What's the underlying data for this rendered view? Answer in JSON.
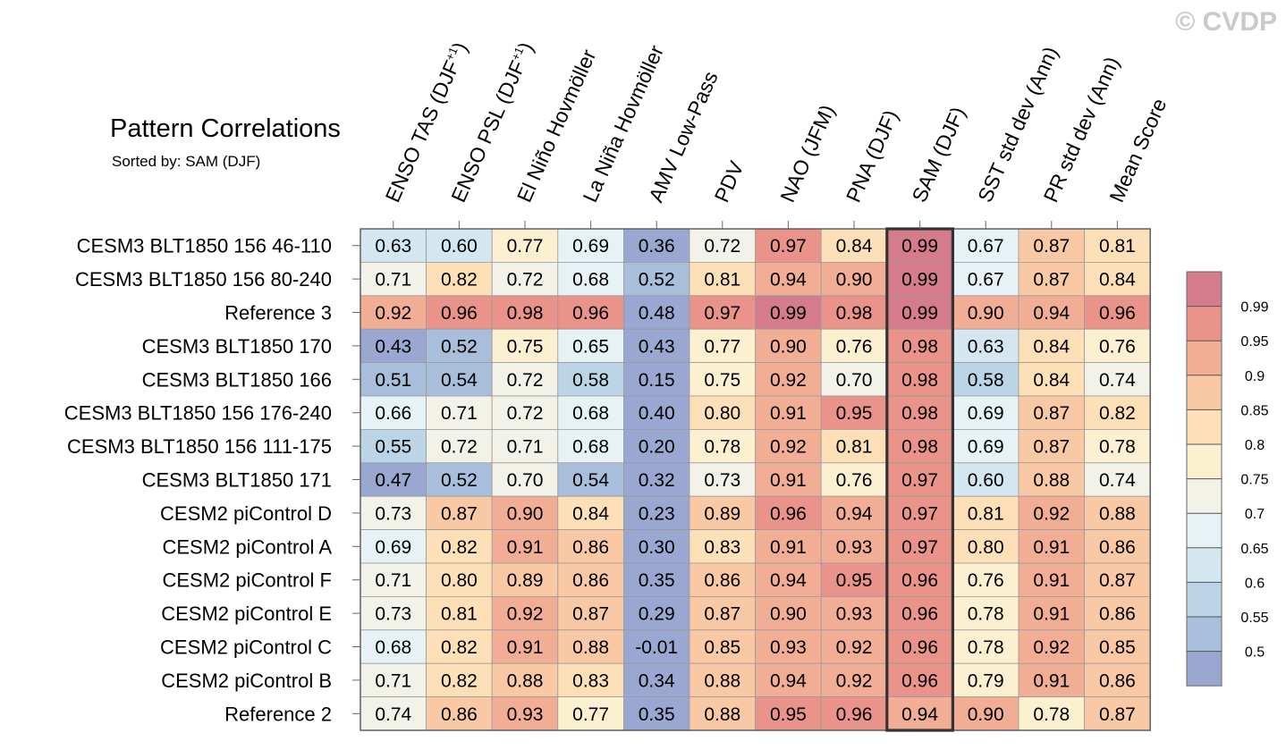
{
  "watermark": "© CVDP",
  "chart_data": {
    "type": "heatmap",
    "title": "Pattern Correlations",
    "subtitle": "Sorted by: SAM (DJF)",
    "highlight_column": "SAM (DJF)",
    "columns": [
      "ENSO TAS (DJF+1)",
      "ENSO PSL (DJF+1)",
      "El Niño Hovmöller",
      "La Niña Hovmöller",
      "AMV Low-Pass",
      "PDV",
      "NAO (JFM)",
      "PNA (DJF)",
      "SAM (DJF)",
      "SST std dev (Ann)",
      "PR std dev (Ann)",
      "Mean Score"
    ],
    "rows": [
      {
        "name": "CESM3 BLT1850 156 46-110",
        "values": [
          0.63,
          0.6,
          0.77,
          0.69,
          0.36,
          0.72,
          0.97,
          0.84,
          0.99,
          0.67,
          0.87,
          0.81
        ]
      },
      {
        "name": "CESM3 BLT1850 156 80-240",
        "values": [
          0.71,
          0.82,
          0.72,
          0.68,
          0.52,
          0.81,
          0.94,
          0.9,
          0.99,
          0.67,
          0.87,
          0.84
        ]
      },
      {
        "name": "Reference 3",
        "values": [
          0.92,
          0.96,
          0.98,
          0.96,
          0.48,
          0.97,
          0.99,
          0.98,
          0.99,
          0.9,
          0.94,
          0.96
        ]
      },
      {
        "name": "CESM3 BLT1850 170",
        "values": [
          0.43,
          0.52,
          0.75,
          0.65,
          0.43,
          0.77,
          0.9,
          0.76,
          0.98,
          0.63,
          0.84,
          0.76
        ]
      },
      {
        "name": "CESM3 BLT1850 166",
        "values": [
          0.51,
          0.54,
          0.72,
          0.58,
          0.15,
          0.75,
          0.92,
          0.7,
          0.98,
          0.58,
          0.84,
          0.74
        ]
      },
      {
        "name": "CESM3 BLT1850 156 176-240",
        "values": [
          0.66,
          0.71,
          0.72,
          0.68,
          0.4,
          0.8,
          0.91,
          0.95,
          0.98,
          0.69,
          0.87,
          0.82
        ]
      },
      {
        "name": "CESM3 BLT1850 156 111-175",
        "values": [
          0.55,
          0.72,
          0.71,
          0.68,
          0.2,
          0.78,
          0.92,
          0.81,
          0.98,
          0.69,
          0.87,
          0.78
        ]
      },
      {
        "name": "CESM3 BLT1850 171",
        "values": [
          0.47,
          0.52,
          0.7,
          0.54,
          0.32,
          0.73,
          0.91,
          0.76,
          0.97,
          0.6,
          0.88,
          0.74
        ]
      },
      {
        "name": "CESM2 piControl D",
        "values": [
          0.73,
          0.87,
          0.9,
          0.84,
          0.23,
          0.89,
          0.96,
          0.94,
          0.97,
          0.81,
          0.92,
          0.88
        ]
      },
      {
        "name": "CESM2 piControl A",
        "values": [
          0.69,
          0.82,
          0.91,
          0.86,
          0.3,
          0.83,
          0.91,
          0.93,
          0.97,
          0.8,
          0.91,
          0.86
        ]
      },
      {
        "name": "CESM2 piControl F",
        "values": [
          0.71,
          0.8,
          0.89,
          0.86,
          0.35,
          0.86,
          0.94,
          0.95,
          0.96,
          0.76,
          0.91,
          0.87
        ]
      },
      {
        "name": "CESM2 piControl E",
        "values": [
          0.73,
          0.81,
          0.92,
          0.87,
          0.29,
          0.87,
          0.9,
          0.93,
          0.96,
          0.78,
          0.91,
          0.86
        ]
      },
      {
        "name": "CESM2 piControl C",
        "values": [
          0.68,
          0.82,
          0.91,
          0.88,
          -0.01,
          0.85,
          0.93,
          0.92,
          0.96,
          0.78,
          0.92,
          0.85
        ]
      },
      {
        "name": "CESM2 piControl B",
        "values": [
          0.71,
          0.82,
          0.88,
          0.83,
          0.34,
          0.88,
          0.94,
          0.92,
          0.96,
          0.79,
          0.91,
          0.86
        ]
      },
      {
        "name": "Reference 2",
        "values": [
          0.74,
          0.86,
          0.93,
          0.77,
          0.35,
          0.88,
          0.95,
          0.96,
          0.94,
          0.9,
          0.78,
          0.87
        ]
      }
    ],
    "colorbar": {
      "thresholds": [
        0.5,
        0.55,
        0.6,
        0.65,
        0.7,
        0.75,
        0.8,
        0.85,
        0.9,
        0.95,
        0.99
      ],
      "labels": [
        "0.5",
        "0.55",
        "0.6",
        "0.65",
        "0.7",
        "0.75",
        "0.8",
        "0.85",
        "0.9",
        "0.95",
        "0.99"
      ],
      "colors": [
        "#9aa7d1",
        "#a9bedb",
        "#bcd5e6",
        "#d4e6ef",
        "#e6f2f5",
        "#f2f2e8",
        "#fbf0cf",
        "#fde0b8",
        "#f9c8a5",
        "#f2ae95",
        "#e9938a",
        "#d47b8c"
      ]
    }
  }
}
